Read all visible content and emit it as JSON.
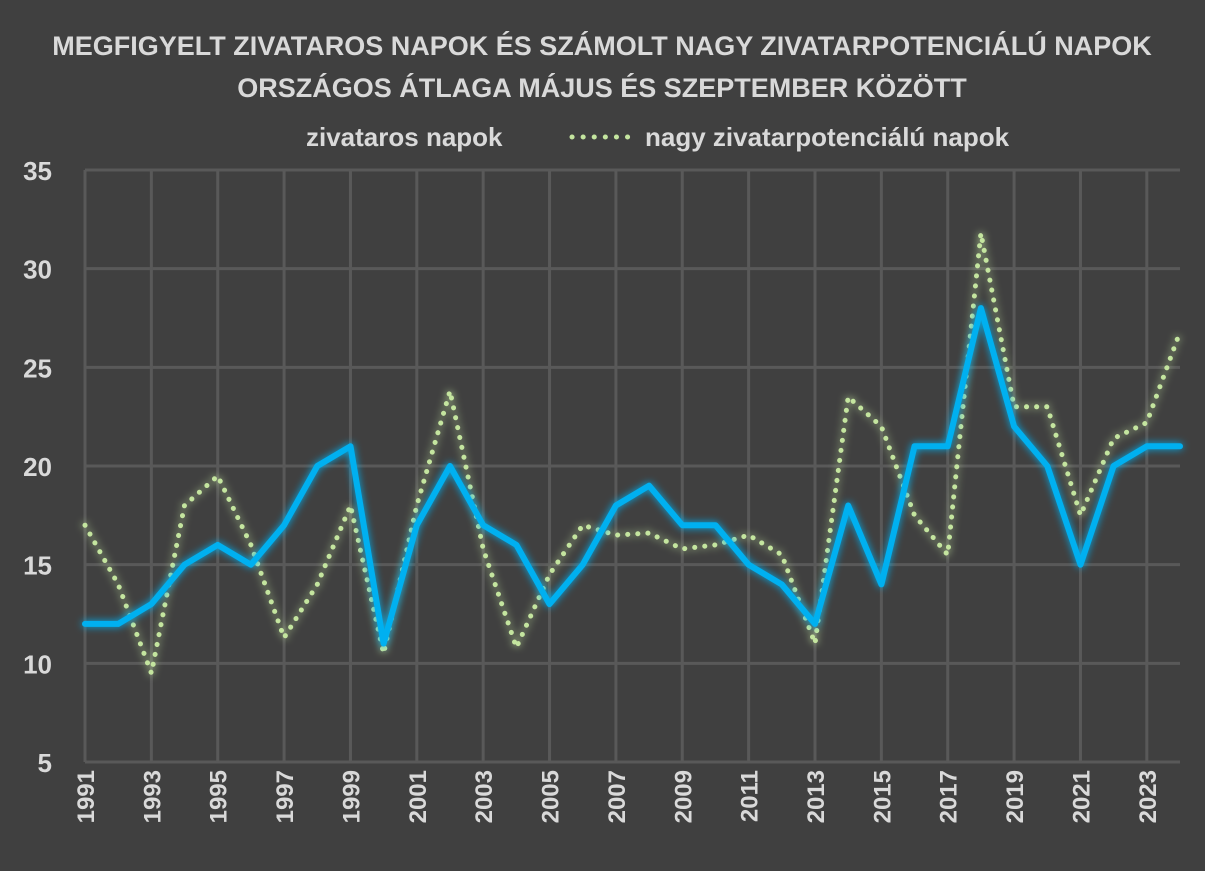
{
  "chart_data": {
    "type": "line",
    "title": "MEGFIGYELT ZIVATAROS NAPOK ÉS SZÁMOLT NAGY ZIVATARPOTENCIÁLÚ NAPOK",
    "subtitle": "ORSZÁGOS ÁTLAGA MÁJUS ÉS SZEPTEMBER KÖZÖTT",
    "xlabel": "",
    "ylabel": "",
    "ylim": [
      5,
      35
    ],
    "yticks": [
      "35",
      "30",
      "25",
      "20",
      "15",
      "10",
      "5"
    ],
    "x": [
      1991,
      1992,
      1993,
      1994,
      1995,
      1996,
      1997,
      1998,
      1999,
      2000,
      2001,
      2002,
      2003,
      2004,
      2005,
      2006,
      2007,
      2008,
      2009,
      2010,
      2011,
      2012,
      2013,
      2014,
      2015,
      2016,
      2017,
      2018,
      2019,
      2020,
      2021,
      2022,
      2023,
      2024
    ],
    "xtick_labels": [
      "1991",
      "1993",
      "1995",
      "1997",
      "1999",
      "2001",
      "2003",
      "2005",
      "2007",
      "2009",
      "2011",
      "2013",
      "2015",
      "2017",
      "2019",
      "2021",
      "2023"
    ],
    "grid": true,
    "legend_position": "top",
    "series": [
      {
        "name": "zivataros napok",
        "color": "#00b0f0",
        "style": "solid",
        "values": [
          12,
          12,
          13,
          15,
          16,
          15,
          17,
          20,
          21,
          11,
          17,
          20,
          17,
          16,
          13,
          15,
          18,
          19,
          17,
          17,
          15,
          14,
          12,
          18,
          14,
          21,
          21,
          28,
          22,
          20,
          15,
          20,
          21,
          21
        ]
      },
      {
        "name": "nagy zivatarpotenciálú napok",
        "color": "#c4e59f",
        "style": "dotted",
        "values": [
          17,
          14,
          9.5,
          18,
          19.5,
          16,
          11.3,
          14,
          18,
          10.5,
          18,
          23.8,
          15.8,
          10.8,
          14.5,
          17,
          16.5,
          16.6,
          15.8,
          16,
          16.5,
          15.5,
          11,
          23.5,
          22,
          17.5,
          15.5,
          31.8,
          23,
          23,
          17.5,
          21.4,
          22.2,
          26.8
        ]
      }
    ]
  },
  "colors": {
    "background": "#404040",
    "gridline": "#595959",
    "text": "#d9d9d9"
  }
}
